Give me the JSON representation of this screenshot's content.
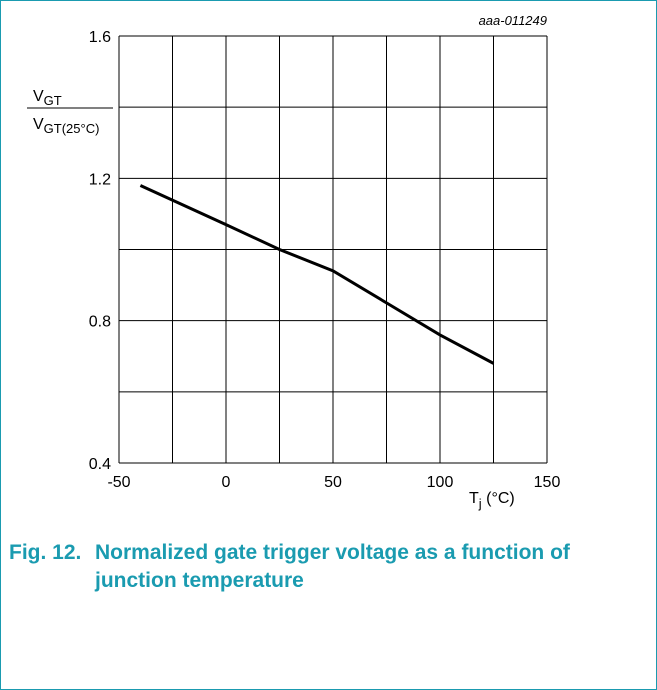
{
  "chart_data": {
    "type": "line",
    "code": "aaa-011249",
    "ylabel": {
      "numerator": "V",
      "numerator_sub": "GT",
      "denominator": "V",
      "denominator_sub": "GT(25°C)"
    },
    "xlabel": {
      "main": "T",
      "sub": "j",
      "unit": " (°C)"
    },
    "x": [
      -40,
      0,
      25,
      50,
      75,
      100,
      125
    ],
    "series": [
      {
        "color": "#000000",
        "values": [
          1.18,
          1.07,
          1.0,
          0.94,
          0.85,
          0.76,
          0.68
        ]
      }
    ],
    "xlim": [
      -50,
      150
    ],
    "xticks": [
      -50,
      0,
      50,
      100,
      150
    ],
    "xgrid": [
      -50,
      -25,
      0,
      25,
      50,
      75,
      100,
      125,
      150
    ],
    "ylim": [
      0.4,
      1.6
    ],
    "yticks": [
      0.4,
      0.8,
      1.2,
      1.6
    ],
    "ygrid": [
      0.4,
      0.6,
      0.8,
      1.0,
      1.2,
      1.4,
      1.6
    ],
    "grid": true
  },
  "figure_number": "Fig. 12.",
  "caption": "Normalized gate trigger voltage as a function of junction temperature"
}
